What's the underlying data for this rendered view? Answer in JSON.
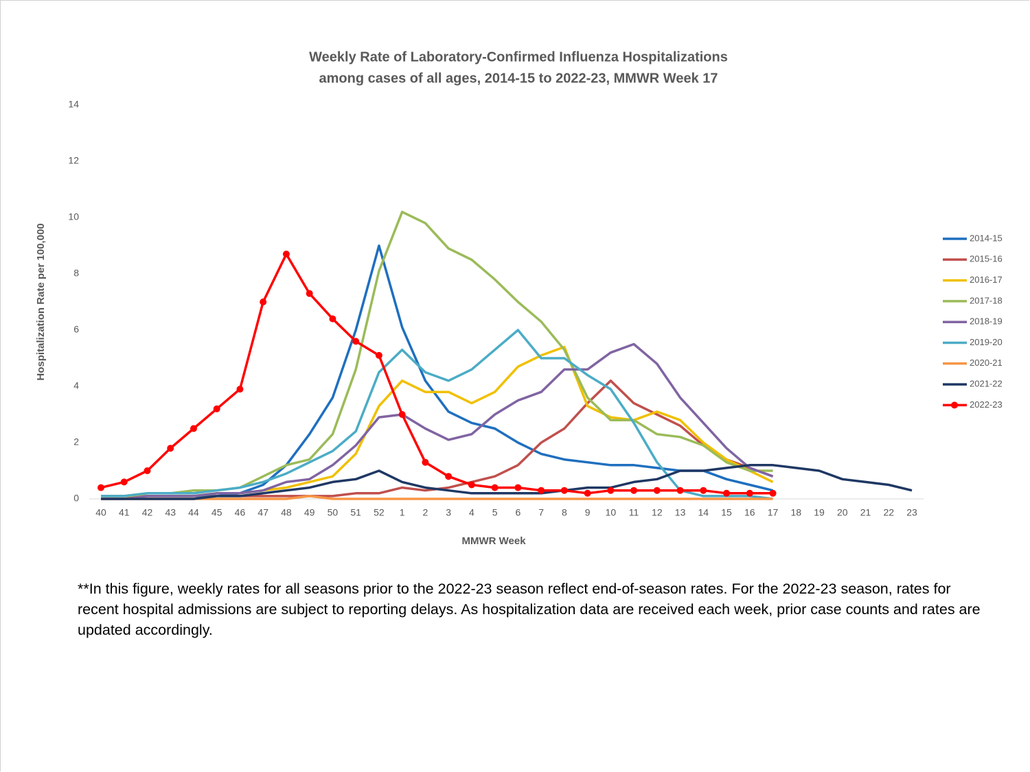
{
  "chart_data": {
    "type": "line",
    "title": "Weekly Rate of Laboratory-Confirmed Influenza Hospitalizations",
    "subtitle": "among cases of all ages, 2014-15 to 2022-23, MMWR Week 17",
    "x_label": "MMWR Week",
    "y_label": "Hospitalization Rate per 100,000",
    "note": "**In this figure, weekly rates for all seasons prior to the 2022-23 season reflect end-of-season rates. For the 2022-23 season, rates for recent hospital admissions are subject to reporting delays. As hospitalization data are received each week, prior case counts and rates are updated accordingly.",
    "categories": [
      "40",
      "41",
      "42",
      "43",
      "44",
      "45",
      "46",
      "47",
      "48",
      "49",
      "50",
      "51",
      "52",
      "1",
      "2",
      "3",
      "4",
      "5",
      "6",
      "7",
      "8",
      "9",
      "10",
      "11",
      "12",
      "13",
      "14",
      "15",
      "16",
      "17",
      "18",
      "19",
      "20",
      "21",
      "22",
      "23"
    ],
    "ylim": [
      0,
      14
    ],
    "yticks": [
      0,
      2,
      4,
      6,
      8,
      10,
      12,
      14
    ],
    "grid": false,
    "legend": "right",
    "series": [
      {
        "name": "2014-15",
        "color": "#1f6fbf",
        "values": [
          0.1,
          0.1,
          0.1,
          0.1,
          0.1,
          0.1,
          0.2,
          0.5,
          1.2,
          2.3,
          3.6,
          6.0,
          9.0,
          6.1,
          4.2,
          3.1,
          2.7,
          2.5,
          2.0,
          1.6,
          1.4,
          1.3,
          1.2,
          1.2,
          1.1,
          1.0,
          1.0,
          0.7,
          0.5,
          0.3,
          null,
          null,
          null,
          null,
          null,
          null
        ]
      },
      {
        "name": "2015-16",
        "color": "#c0504d",
        "values": [
          0.0,
          0.0,
          0.0,
          0.0,
          0.0,
          0.1,
          0.1,
          0.1,
          0.1,
          0.1,
          0.1,
          0.2,
          0.2,
          0.4,
          0.3,
          0.4,
          0.6,
          0.8,
          1.2,
          2.0,
          2.5,
          3.4,
          4.2,
          3.4,
          3.0,
          2.6,
          1.9,
          1.4,
          1.1,
          0.8,
          null,
          null,
          null,
          null,
          null,
          null
        ]
      },
      {
        "name": "2016-17",
        "color": "#f0c000",
        "values": [
          0.1,
          0.1,
          0.1,
          0.1,
          0.1,
          0.2,
          0.2,
          0.3,
          0.4,
          0.6,
          0.8,
          1.6,
          3.3,
          4.2,
          3.8,
          3.8,
          3.4,
          3.8,
          4.7,
          5.1,
          5.4,
          3.3,
          2.9,
          2.8,
          3.1,
          2.8,
          2.0,
          1.4,
          1.0,
          0.6,
          null,
          null,
          null,
          null,
          null,
          null
        ]
      },
      {
        "name": "2017-18",
        "color": "#9bbb59",
        "values": [
          0.1,
          0.1,
          0.2,
          0.2,
          0.3,
          0.3,
          0.4,
          0.8,
          1.2,
          1.4,
          2.3,
          4.6,
          8.1,
          10.2,
          9.8,
          8.9,
          8.5,
          7.8,
          7.0,
          6.3,
          5.3,
          3.6,
          2.8,
          2.8,
          2.3,
          2.2,
          1.9,
          1.3,
          1.0,
          1.0,
          null,
          null,
          null,
          null,
          null,
          null
        ]
      },
      {
        "name": "2018-19",
        "color": "#8064a2",
        "values": [
          0.0,
          0.0,
          0.1,
          0.1,
          0.1,
          0.2,
          0.2,
          0.3,
          0.6,
          0.7,
          1.2,
          1.9,
          2.9,
          3.0,
          2.5,
          2.1,
          2.3,
          3.0,
          3.5,
          3.8,
          4.6,
          4.6,
          5.2,
          5.5,
          4.8,
          3.6,
          2.7,
          1.8,
          1.1,
          0.8,
          null,
          null,
          null,
          null,
          null,
          null
        ]
      },
      {
        "name": "2019-20",
        "color": "#4bacc6",
        "values": [
          0.1,
          0.1,
          0.2,
          0.2,
          0.2,
          0.3,
          0.4,
          0.6,
          0.9,
          1.3,
          1.7,
          2.4,
          4.5,
          5.3,
          4.5,
          4.2,
          4.6,
          5.3,
          6.0,
          5.0,
          5.0,
          4.4,
          3.9,
          2.7,
          1.3,
          0.3,
          0.1,
          0.1,
          0.1,
          0.0,
          null,
          null,
          null,
          null,
          null,
          null
        ]
      },
      {
        "name": "2020-21",
        "color": "#f79646",
        "values": [
          0.0,
          0.0,
          0.0,
          0.0,
          0.0,
          0.0,
          0.0,
          0.0,
          0.0,
          0.1,
          0.0,
          0.0,
          0.0,
          0.0,
          0.0,
          0.0,
          0.0,
          0.0,
          0.0,
          0.0,
          0.0,
          0.0,
          0.0,
          0.0,
          0.0,
          0.0,
          0.0,
          0.0,
          0.0,
          0.0,
          null,
          null,
          null,
          null,
          null,
          null
        ]
      },
      {
        "name": "2021-22",
        "color": "#1f3864",
        "values": [
          0.0,
          0.0,
          0.0,
          0.0,
          0.0,
          0.1,
          0.1,
          0.2,
          0.3,
          0.4,
          0.6,
          0.7,
          1.0,
          0.6,
          0.4,
          0.3,
          0.2,
          0.2,
          0.2,
          0.2,
          0.3,
          0.4,
          0.4,
          0.6,
          0.7,
          1.0,
          1.0,
          1.1,
          1.2,
          1.2,
          1.1,
          1.0,
          0.7,
          0.6,
          0.5,
          0.3
        ]
      },
      {
        "name": "2022-23",
        "color": "#ff0000",
        "marker": true,
        "values": [
          0.4,
          0.6,
          1.0,
          1.8,
          2.5,
          3.2,
          3.9,
          7.0,
          8.7,
          7.3,
          6.4,
          5.6,
          5.1,
          3.0,
          1.3,
          0.8,
          0.5,
          0.4,
          0.4,
          0.3,
          0.3,
          0.2,
          0.3,
          0.3,
          0.3,
          0.3,
          0.3,
          0.2,
          0.2,
          0.2,
          null,
          null,
          null,
          null,
          null,
          null
        ]
      }
    ]
  }
}
